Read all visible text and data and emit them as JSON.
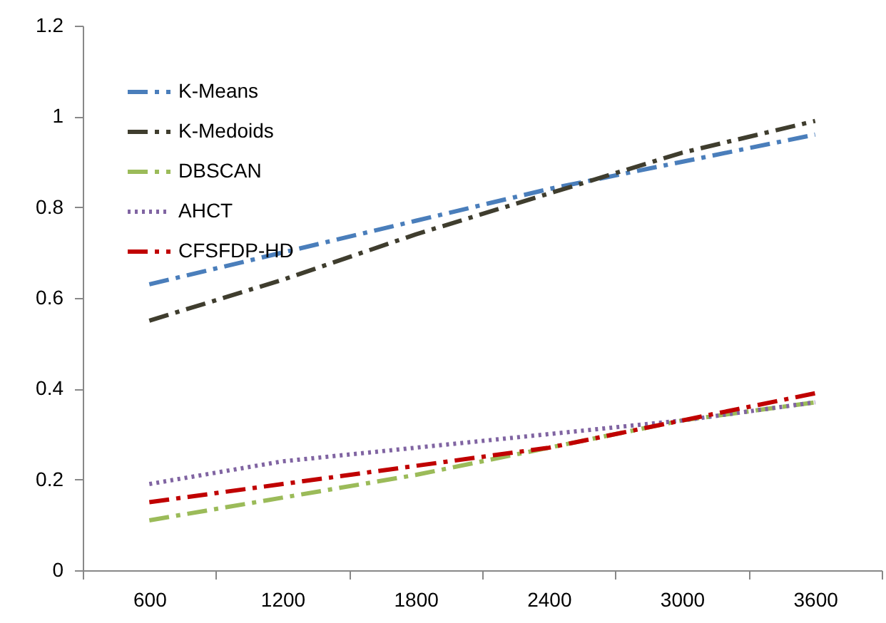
{
  "chart_data": {
    "type": "line",
    "categories": [
      "600",
      "1200",
      "1800",
      "2400",
      "3000",
      "3600"
    ],
    "series": [
      {
        "name": "K-Means",
        "color": "#4a7ebb",
        "line_style": "dashed",
        "values": [
          0.63,
          0.7,
          0.77,
          0.84,
          0.9,
          0.96
        ]
      },
      {
        "name": "K-Medoids",
        "color": "#3f3d2e",
        "line_style": "dashed",
        "values": [
          0.55,
          0.64,
          0.74,
          0.83,
          0.92,
          0.99
        ]
      },
      {
        "name": "DBSCAN",
        "color": "#9bbb59",
        "line_style": "dashed",
        "values": [
          0.11,
          0.16,
          0.21,
          0.27,
          0.33,
          0.37
        ]
      },
      {
        "name": "AHCT",
        "color": "#8064a2",
        "line_style": "dotted",
        "values": [
          0.19,
          0.24,
          0.27,
          0.3,
          0.33,
          0.37
        ]
      },
      {
        "name": "CFSFDP-HD",
        "color": "#c00000",
        "line_style": "dashed",
        "values": [
          0.15,
          0.19,
          0.23,
          0.27,
          0.33,
          0.39
        ]
      }
    ],
    "ylim": [
      0,
      1.2
    ],
    "yticks": [
      0,
      0.2,
      0.4,
      0.6,
      0.8,
      1,
      1.2
    ],
    "grid": false,
    "legend": "top left",
    "marker": "none"
  }
}
